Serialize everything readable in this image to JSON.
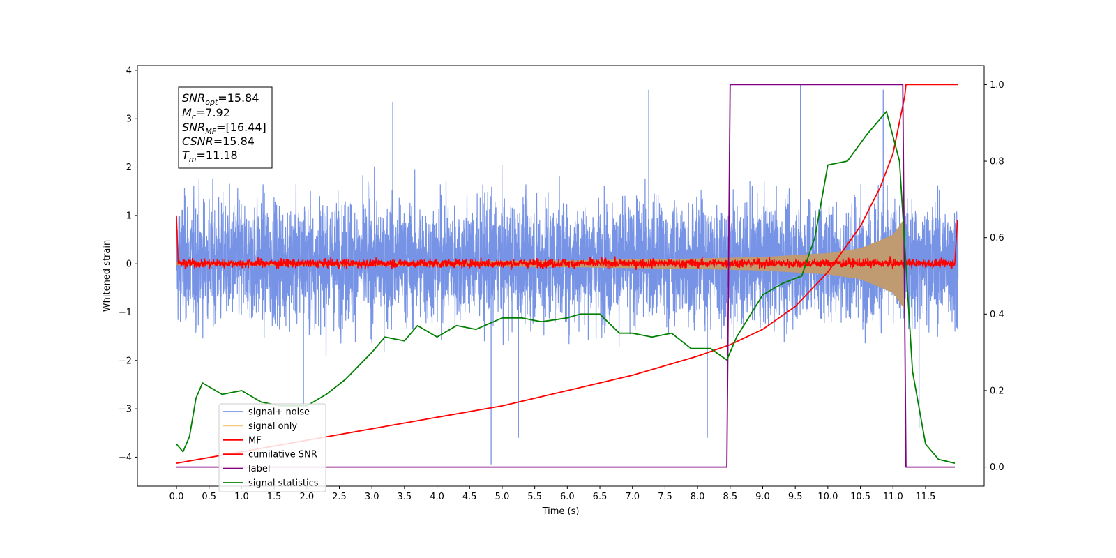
{
  "chart_data": {
    "type": "line",
    "xlabel": "Time (s)",
    "ylabel": "Whitened strain",
    "xlim": [
      -0.6,
      12.4
    ],
    "ylim": [
      -4.6,
      4.1
    ],
    "y2lim": [
      -0.05,
      1.05
    ],
    "x_ticks": [
      0.0,
      0.5,
      1.0,
      1.5,
      2.0,
      2.5,
      3.0,
      3.5,
      4.0,
      4.5,
      5.0,
      5.5,
      6.0,
      6.5,
      7.0,
      7.5,
      8.0,
      8.5,
      9.0,
      9.5,
      10.0,
      10.5,
      11.0,
      11.5
    ],
    "x_tick_labels": [
      "0.0",
      "0.5",
      "1.0",
      "1.5",
      "2.0",
      "2.5",
      "3.0",
      "3.5",
      "4.0",
      "4.5",
      "5.0",
      "5.5",
      "6.0",
      "6.5",
      "7.0",
      "7.5",
      "8.0",
      "8.5",
      "9.0",
      "9.5",
      "10.0",
      "10.5",
      "11.0",
      "11.5"
    ],
    "y_ticks": [
      -4,
      -3,
      -2,
      -1,
      0,
      1,
      2,
      3,
      4
    ],
    "y_tick_labels": [
      "−4",
      "−3",
      "−2",
      "−1",
      "0",
      "1",
      "2",
      "3",
      "4"
    ],
    "y2_ticks": [
      0.0,
      0.2,
      0.4,
      0.6,
      0.8,
      1.0
    ],
    "y2_tick_labels": [
      "0.0",
      "0.2",
      "0.4",
      "0.6",
      "0.8",
      "1.0"
    ],
    "grid": false,
    "legend_position": "lower-left",
    "info_box": {
      "snr_opt": "=15.84",
      "mc": "=7.92",
      "snr_mf": "=[16.44]",
      "csnr": "=15.84",
      "tm": "=11.18"
    },
    "series": [
      {
        "name": "signal+ noise",
        "axis": "left",
        "color": "#7793e6",
        "description_envelope": {
          "x": [
            0,
            12
          ],
          "typical_low": -1.9,
          "typical_high": 2.0,
          "extreme_low": -4.15,
          "extreme_high": 3.7
        }
      },
      {
        "name": "signal only",
        "axis": "left",
        "color": "#f5c97a",
        "chirp_amplitude": {
          "x": [
            0.0,
            2.0,
            4.0,
            6.0,
            8.0,
            9.0,
            10.0,
            10.5,
            11.0,
            11.18
          ],
          "y": [
            0.03,
            0.04,
            0.05,
            0.07,
            0.11,
            0.14,
            0.22,
            0.32,
            0.6,
            0.95
          ]
        }
      },
      {
        "name": "MF",
        "axis": "left",
        "color": "#ff0000",
        "band": {
          "low": -0.08,
          "high": 0.1,
          "start_value": 1.0,
          "end_value": 0.9
        }
      },
      {
        "name": "cumilative SNR",
        "axis": "right",
        "color": "#ff0000",
        "x": [
          0.0,
          1.0,
          2.0,
          3.0,
          4.0,
          5.0,
          6.0,
          7.0,
          8.0,
          8.5,
          9.0,
          9.5,
          10.0,
          10.5,
          10.8,
          11.0,
          11.18,
          11.2,
          12.0
        ],
        "y": [
          0.01,
          0.04,
          0.07,
          0.1,
          0.13,
          0.16,
          0.2,
          0.24,
          0.29,
          0.32,
          0.36,
          0.42,
          0.51,
          0.63,
          0.73,
          0.82,
          0.97,
          1.0,
          1.0
        ]
      },
      {
        "name": "label",
        "axis": "right",
        "color": "#800080",
        "x": [
          0.0,
          8.45,
          8.5,
          11.15,
          11.2,
          11.95
        ],
        "y": [
          0.0,
          0.0,
          1.0,
          1.0,
          0.0,
          0.0
        ]
      },
      {
        "name": "signal statistics",
        "axis": "right",
        "color": "#008000",
        "x": [
          0.0,
          0.1,
          0.2,
          0.3,
          0.4,
          0.5,
          0.7,
          1.0,
          1.3,
          1.6,
          2.0,
          2.3,
          2.6,
          3.0,
          3.2,
          3.5,
          3.7,
          4.0,
          4.3,
          4.6,
          5.0,
          5.3,
          5.6,
          6.0,
          6.2,
          6.5,
          6.8,
          7.0,
          7.3,
          7.6,
          7.9,
          8.2,
          8.45,
          8.6,
          9.0,
          9.3,
          9.6,
          9.8,
          10.0,
          10.3,
          10.6,
          10.9,
          11.1,
          11.3,
          11.5,
          11.7,
          11.95
        ],
        "y": [
          0.06,
          0.04,
          0.08,
          0.18,
          0.22,
          0.21,
          0.19,
          0.2,
          0.17,
          0.16,
          0.16,
          0.19,
          0.23,
          0.3,
          0.34,
          0.33,
          0.37,
          0.34,
          0.37,
          0.36,
          0.39,
          0.39,
          0.38,
          0.39,
          0.4,
          0.4,
          0.35,
          0.35,
          0.34,
          0.35,
          0.31,
          0.31,
          0.28,
          0.34,
          0.45,
          0.48,
          0.5,
          0.6,
          0.79,
          0.8,
          0.87,
          0.93,
          0.8,
          0.25,
          0.06,
          0.02,
          0.01
        ]
      }
    ]
  }
}
